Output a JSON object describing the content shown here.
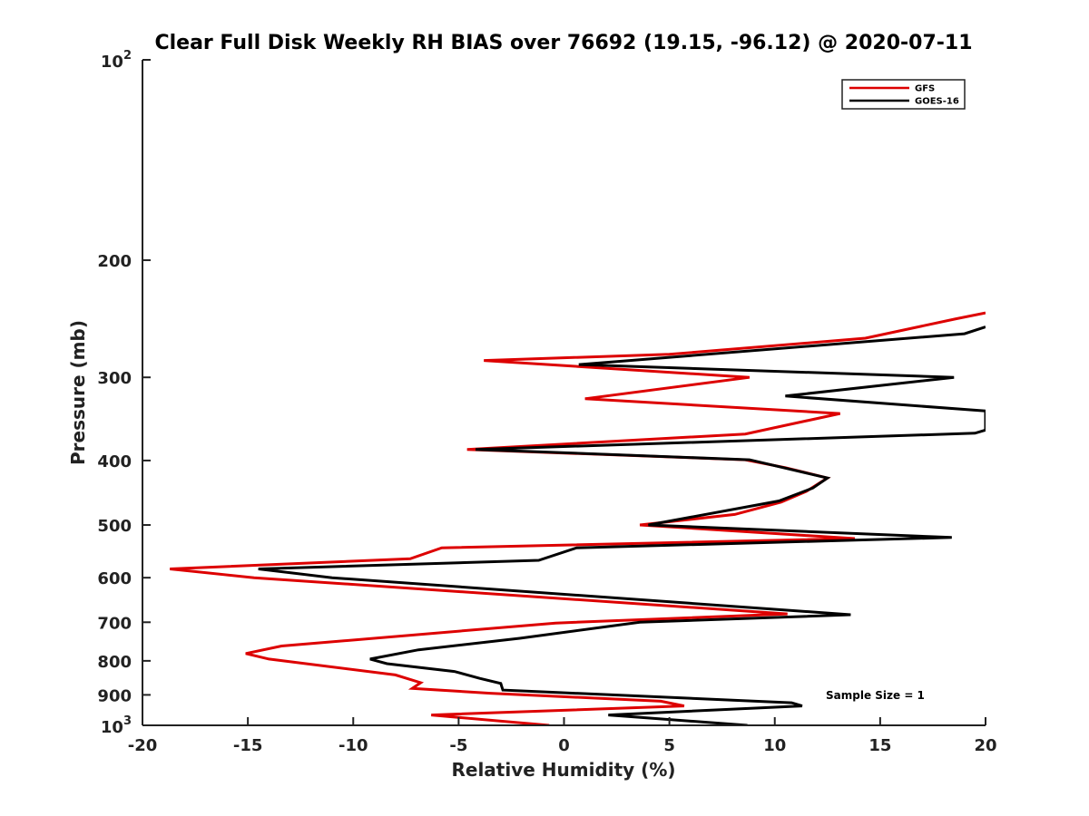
{
  "chart_data": {
    "type": "line",
    "title": "Clear Full Disk Weekly RH BIAS over 76692 (19.15, -96.12) @ 2020-07-11",
    "xlabel": "Relative Humidity (%)",
    "ylabel": "Pressure (mb)",
    "xlim": [
      -20,
      20
    ],
    "ylim": [
      100,
      1000
    ],
    "yscale": "log",
    "y_reversed": true,
    "xticks": [
      -20,
      -15,
      -10,
      -5,
      0,
      5,
      10,
      15,
      20
    ],
    "xtick_labels": [
      "-20",
      "-15",
      "-10",
      "-5",
      "0",
      "5",
      "10",
      "15",
      "20"
    ],
    "yticks": [
      {
        "value": 100,
        "base": "10",
        "exp": "2"
      },
      {
        "value": 200,
        "label": "200"
      },
      {
        "value": 300,
        "label": "300"
      },
      {
        "value": 400,
        "label": "400"
      },
      {
        "value": 500,
        "label": "500"
      },
      {
        "value": 600,
        "label": "600"
      },
      {
        "value": 700,
        "label": "700"
      },
      {
        "value": 800,
        "label": "800"
      },
      {
        "value": 900,
        "label": "900"
      },
      {
        "value": 1000,
        "base": "10",
        "exp": "3"
      }
    ],
    "grid": false,
    "legend_position": "top-right",
    "annotation": "Sample Size = 1",
    "series": [
      {
        "name": "GFS",
        "color": "#dd0000",
        "points": [
          [
            20.0,
            240
          ],
          [
            18.6,
            245
          ],
          [
            14.3,
            262
          ],
          [
            5.0,
            277
          ],
          [
            -3.8,
            283
          ],
          [
            8.8,
            300
          ],
          [
            1.0,
            323
          ],
          [
            13.1,
            340
          ],
          [
            8.6,
            365
          ],
          [
            -4.6,
            385
          ],
          [
            8.6,
            399
          ],
          [
            10.5,
            410
          ],
          [
            12.5,
            425
          ],
          [
            11.5,
            445
          ],
          [
            10.3,
            462
          ],
          [
            8.1,
            482
          ],
          [
            3.6,
            500
          ],
          [
            13.8,
            524
          ],
          [
            -5.8,
            541
          ],
          [
            -7.3,
            562
          ],
          [
            -18.7,
            582
          ],
          [
            -14.7,
            600
          ],
          [
            10.6,
            680
          ],
          [
            -0.4,
            702
          ],
          [
            -13.4,
            760
          ],
          [
            -15.1,
            780
          ],
          [
            -14.0,
            795
          ],
          [
            -8.0,
            840
          ],
          [
            -6.8,
            863
          ],
          [
            -7.2,
            880
          ],
          [
            -3.5,
            895
          ],
          [
            4.6,
            920
          ],
          [
            5.7,
            935
          ],
          [
            -6.3,
            965
          ],
          [
            -0.7,
            1000
          ]
        ]
      },
      {
        "name": "GOES-16",
        "color": "#000000",
        "points": [
          [
            20.0,
            252
          ],
          [
            19.0,
            258
          ],
          [
            0.7,
            287
          ],
          [
            18.5,
            300
          ],
          [
            10.5,
            320
          ],
          [
            20.0,
            337
          ],
          [
            20.0,
            360
          ],
          [
            19.5,
            364
          ],
          [
            -4.2,
            385
          ],
          [
            8.8,
            399
          ],
          [
            12.5,
            425
          ],
          [
            11.8,
            440
          ],
          [
            10.2,
            460
          ],
          [
            4.0,
            500
          ],
          [
            18.4,
            522
          ],
          [
            0.6,
            541
          ],
          [
            -1.2,
            565
          ],
          [
            -14.5,
            582
          ],
          [
            -11.0,
            600
          ],
          [
            13.6,
            682
          ],
          [
            3.6,
            700
          ],
          [
            -2.1,
            740
          ],
          [
            -6.9,
            770
          ],
          [
            -9.2,
            795
          ],
          [
            -8.4,
            808
          ],
          [
            -5.2,
            830
          ],
          [
            -4.0,
            850
          ],
          [
            -3.0,
            865
          ],
          [
            -2.9,
            885
          ],
          [
            10.8,
            925
          ],
          [
            11.3,
            935
          ],
          [
            2.1,
            965
          ],
          [
            8.7,
            1000
          ]
        ]
      }
    ]
  }
}
